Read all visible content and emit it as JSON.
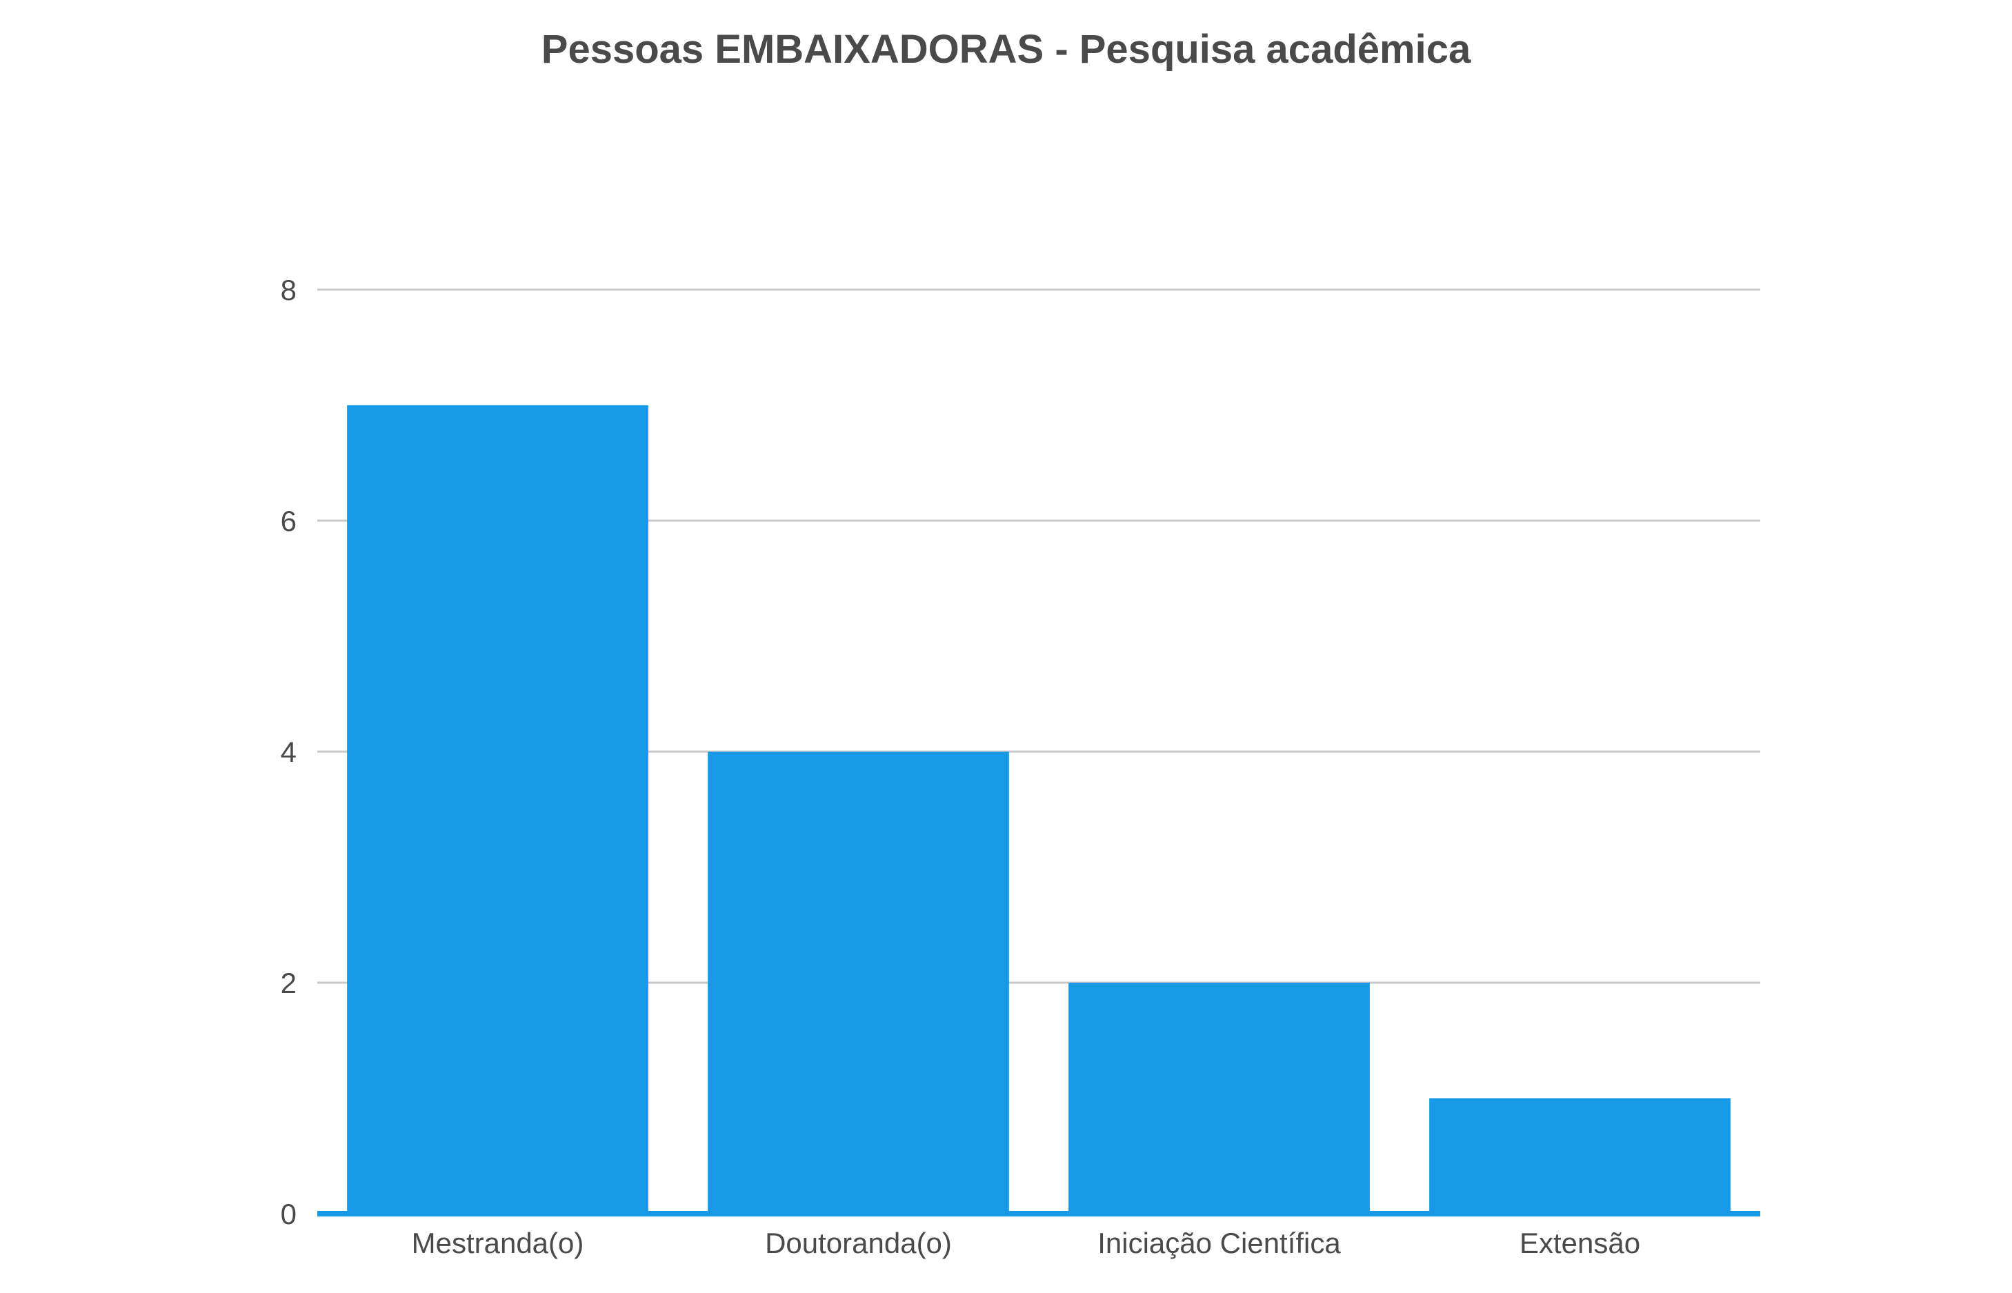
{
  "chart_data": {
    "type": "bar",
    "title": "Pessoas EMBAIXADORAS - Pesquisa acadêmica",
    "categories": [
      "Mestranda(o)",
      "Doutoranda(o)",
      "Iniciação Científica",
      "Extensão"
    ],
    "values": [
      7,
      4,
      2,
      1
    ],
    "xlabel": "",
    "ylabel": "",
    "ylim": [
      0,
      8
    ],
    "yticks": [
      "0",
      "2",
      "4",
      "6",
      "8"
    ],
    "grid": true,
    "legend": "none",
    "bar_color": "#1799e6",
    "grid_color": "#c8c8c8",
    "axis_color": "#1799e6"
  }
}
